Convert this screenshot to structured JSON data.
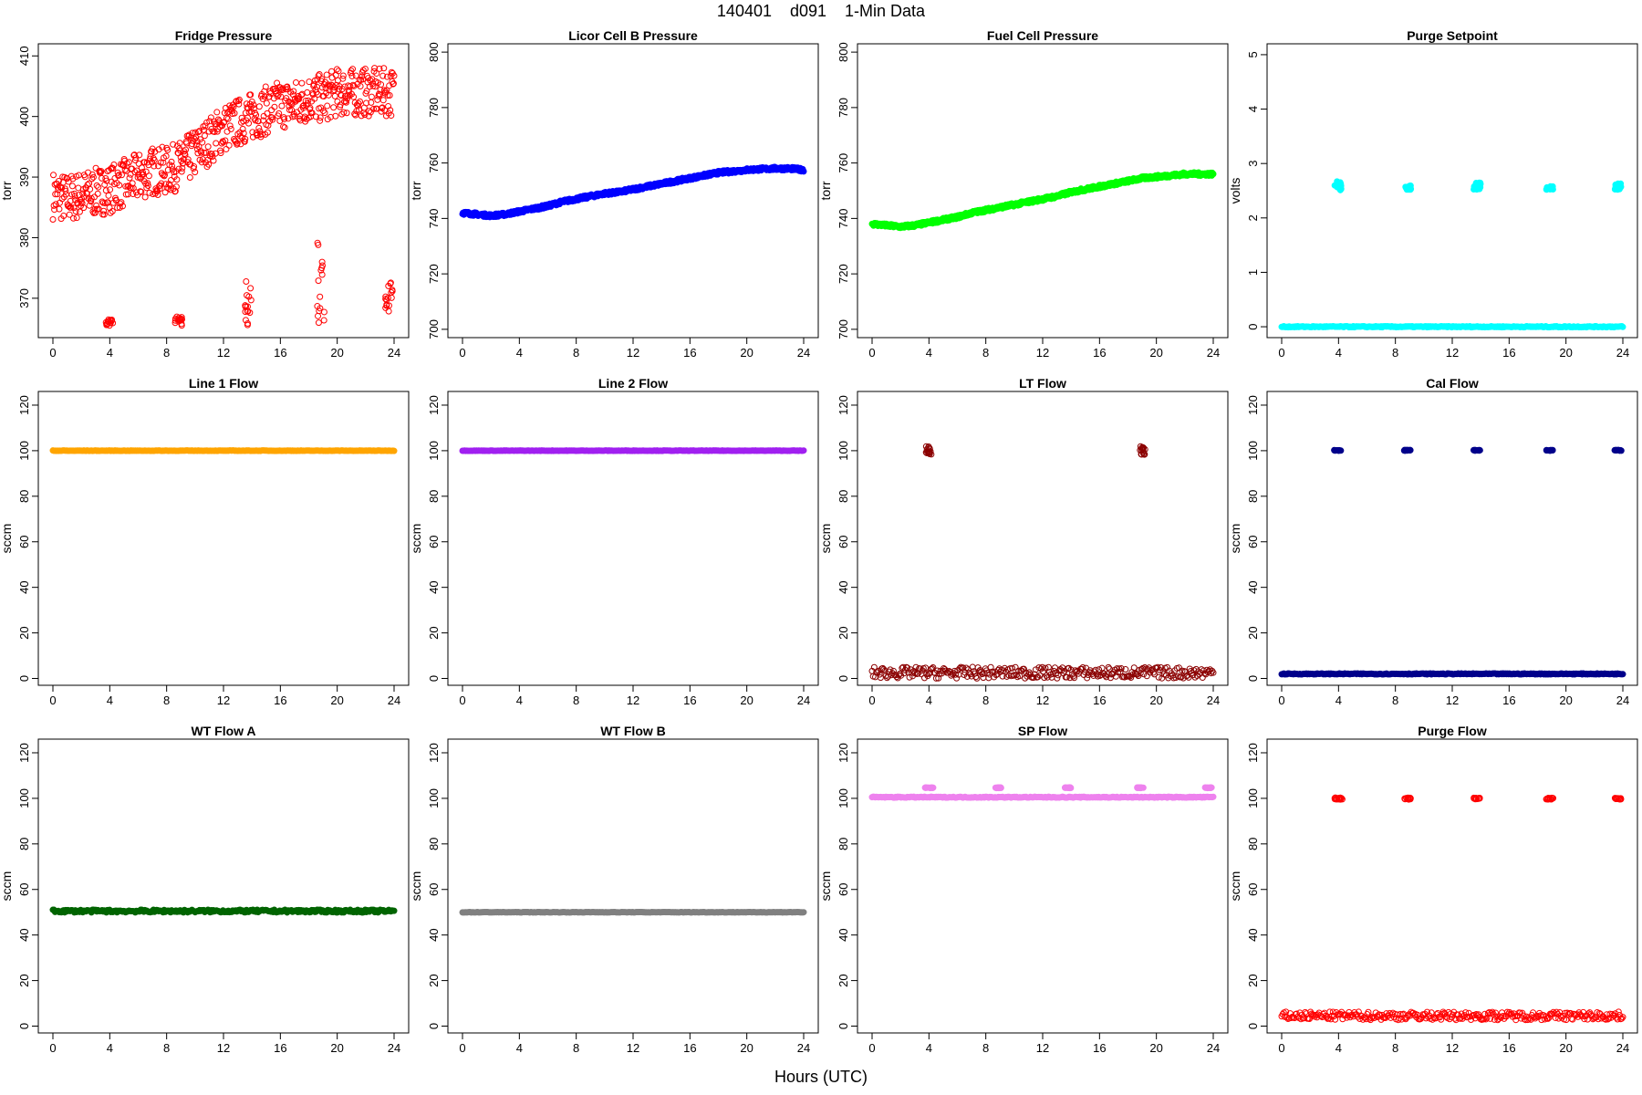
{
  "title": "140401    d091    1-Min Data",
  "x_label": "Hours (UTC)",
  "chart_data": [
    {
      "type": "scatter",
      "title": "Fridge Pressure",
      "ylabel": "torr",
      "xlim": [
        0,
        24
      ],
      "ylim": [
        363.5,
        412
      ],
      "yticks": [
        370,
        380,
        390,
        400,
        410
      ],
      "xticks": [
        0,
        4,
        8,
        12,
        16,
        20,
        24
      ],
      "color": "#ff0000",
      "marker": "open",
      "series": [
        {
          "values": [
            [
              0,
              387
            ],
            [
              1,
              386.5
            ],
            [
              2,
              387
            ],
            [
              3,
              387.5
            ],
            [
              4,
              388
            ],
            [
              5,
              389
            ],
            [
              6,
              390
            ],
            [
              7,
              391
            ],
            [
              8,
              391
            ],
            [
              9,
              392
            ],
            [
              10,
              394
            ],
            [
              11,
              396
            ],
            [
              12,
              398
            ],
            [
              13,
              399
            ],
            [
              14,
              400
            ],
            [
              15,
              401
            ],
            [
              16,
              402
            ],
            [
              17,
              402
            ],
            [
              18,
              403
            ],
            [
              19,
              403
            ],
            [
              20,
              404
            ],
            [
              21,
              404
            ],
            [
              22,
              404
            ],
            [
              23,
              404
            ],
            [
              24,
              404
            ]
          ],
          "spread": 4
        },
        {
          "segments": [
            [
              3.7,
              4.3,
              365.5,
              366.5
            ],
            [
              8.6,
              9.1,
              365.5,
              367
            ],
            [
              13.5,
              14,
              365.5,
              373
            ],
            [
              18.6,
              19.1,
              365.5,
              380
            ],
            [
              23.4,
              23.9,
              365.5,
              374
            ]
          ]
        }
      ]
    },
    {
      "type": "scatter",
      "title": "Licor Cell B Pressure",
      "ylabel": "torr",
      "xlim": [
        0,
        24
      ],
      "ylim": [
        697,
        803
      ],
      "yticks": [
        700,
        720,
        740,
        760,
        780,
        800
      ],
      "xticks": [
        0,
        4,
        8,
        12,
        16,
        20,
        24
      ],
      "color": "#0000ff",
      "marker": "filled",
      "series": [
        {
          "values": [
            [
              0,
              742
            ],
            [
              1,
              741.5
            ],
            [
              2,
              741
            ],
            [
              3,
              741.5
            ],
            [
              4,
              742.5
            ],
            [
              5,
              743.5
            ],
            [
              6,
              744.5
            ],
            [
              7,
              746
            ],
            [
              8,
              747
            ],
            [
              9,
              748
            ],
            [
              10,
              749
            ],
            [
              11,
              749.5
            ],
            [
              12,
              750.5
            ],
            [
              13,
              751.5
            ],
            [
              14,
              752.5
            ],
            [
              15,
              753.5
            ],
            [
              16,
              754.5
            ],
            [
              17,
              755.5
            ],
            [
              18,
              756.5
            ],
            [
              19,
              757
            ],
            [
              20,
              757.5
            ],
            [
              21,
              757.8
            ],
            [
              22,
              758
            ],
            [
              23,
              758
            ],
            [
              24,
              757.5
            ]
          ],
          "spread": 0.6
        }
      ]
    },
    {
      "type": "scatter",
      "title": "Fuel Cell Pressure",
      "ylabel": "torr",
      "xlim": [
        0,
        24
      ],
      "ylim": [
        697,
        803
      ],
      "yticks": [
        700,
        720,
        740,
        760,
        780,
        800
      ],
      "xticks": [
        0,
        4,
        8,
        12,
        16,
        20,
        24
      ],
      "color": "#00ff00",
      "marker": "filled",
      "series": [
        {
          "values": [
            [
              0,
              738
            ],
            [
              1,
              737.5
            ],
            [
              2,
              737
            ],
            [
              3,
              737.5
            ],
            [
              4,
              738.5
            ],
            [
              5,
              739.5
            ],
            [
              6,
              740.5
            ],
            [
              7,
              742
            ],
            [
              8,
              743
            ],
            [
              9,
              744
            ],
            [
              10,
              745
            ],
            [
              11,
              746
            ],
            [
              12,
              747
            ],
            [
              13,
              748
            ],
            [
              14,
              749.5
            ],
            [
              15,
              750.5
            ],
            [
              16,
              751.5
            ],
            [
              17,
              752.5
            ],
            [
              18,
              753.5
            ],
            [
              19,
              754.5
            ],
            [
              20,
              755
            ],
            [
              21,
              755.5
            ],
            [
              22,
              756
            ],
            [
              23,
              756
            ],
            [
              24,
              756
            ]
          ],
          "spread": 0.6
        }
      ]
    },
    {
      "type": "scatter",
      "title": "Purge Setpoint",
      "ylabel": "volts",
      "xlim": [
        0,
        24
      ],
      "ylim": [
        -0.2,
        5.2
      ],
      "yticks": [
        0,
        1,
        2,
        3,
        4,
        5
      ],
      "xticks": [
        0,
        4,
        8,
        12,
        16,
        20,
        24
      ],
      "color": "#00ffff",
      "marker": "filled",
      "series": [
        {
          "values": [
            [
              0,
              0
            ],
            [
              24,
              0
            ]
          ],
          "spread": 0.01,
          "line": true
        },
        {
          "segments": [
            [
              3.7,
              4.3,
              2.5,
              2.68
            ],
            [
              8.6,
              9.1,
              2.52,
              2.6
            ],
            [
              13.5,
              14,
              2.52,
              2.65
            ],
            [
              18.6,
              19.1,
              2.52,
              2.58
            ],
            [
              23.4,
              23.9,
              2.52,
              2.65
            ]
          ]
        }
      ]
    },
    {
      "type": "scatter",
      "title": "Line 1 Flow",
      "ylabel": "sccm",
      "xlim": [
        0,
        24
      ],
      "ylim": [
        -3,
        126
      ],
      "yticks": [
        0,
        20,
        40,
        60,
        80,
        100,
        120
      ],
      "xticks": [
        0,
        4,
        8,
        12,
        16,
        20,
        24
      ],
      "color": "#ffa500",
      "marker": "filled",
      "series": [
        {
          "values": [
            [
              0,
              100
            ],
            [
              24,
              100
            ]
          ],
          "spread": 0.1,
          "line": true
        }
      ]
    },
    {
      "type": "scatter",
      "title": "Line 2 Flow",
      "ylabel": "sccm",
      "xlim": [
        0,
        24
      ],
      "ylim": [
        -3,
        126
      ],
      "yticks": [
        0,
        20,
        40,
        60,
        80,
        100,
        120
      ],
      "xticks": [
        0,
        4,
        8,
        12,
        16,
        20,
        24
      ],
      "color": "#a020f0",
      "marker": "filled",
      "series": [
        {
          "values": [
            [
              0,
              100
            ],
            [
              24,
              100
            ]
          ],
          "spread": 0.1,
          "line": true
        }
      ]
    },
    {
      "type": "scatter",
      "title": "LT Flow",
      "ylabel": "sccm",
      "xlim": [
        0,
        24
      ],
      "ylim": [
        -3,
        126
      ],
      "yticks": [
        0,
        20,
        40,
        60,
        80,
        100,
        120
      ],
      "xticks": [
        0,
        4,
        8,
        12,
        16,
        20,
        24
      ],
      "color": "#8b0000",
      "marker": "open",
      "series": [
        {
          "values": [
            [
              0,
              2.5
            ],
            [
              24,
              2.5
            ]
          ],
          "spread": 2.5,
          "line": true
        },
        {
          "segments": [
            [
              3.8,
              4.2,
              98,
              102
            ],
            [
              18.8,
              19.2,
              98,
              102
            ]
          ]
        }
      ]
    },
    {
      "type": "scatter",
      "title": "Cal Flow",
      "ylabel": "sccm",
      "xlim": [
        0,
        24
      ],
      "ylim": [
        -3,
        126
      ],
      "yticks": [
        0,
        20,
        40,
        60,
        80,
        100,
        120
      ],
      "xticks": [
        0,
        4,
        8,
        12,
        16,
        20,
        24
      ],
      "color": "#00008b",
      "marker": "filled",
      "series": [
        {
          "values": [
            [
              0,
              2
            ],
            [
              24,
              2
            ]
          ],
          "spread": 0.2,
          "line": true
        },
        {
          "segments": [
            [
              3.7,
              4.3,
              100,
              100.3
            ],
            [
              8.6,
              9.1,
              100,
              100.3
            ],
            [
              13.5,
              14,
              100,
              100.3
            ],
            [
              18.6,
              19.1,
              100,
              100.3
            ],
            [
              23.4,
              23.9,
              100,
              100.3
            ]
          ]
        }
      ]
    },
    {
      "type": "scatter",
      "title": "WT Flow A",
      "ylabel": "sccm",
      "xlim": [
        0,
        24
      ],
      "ylim": [
        -3,
        126
      ],
      "yticks": [
        0,
        20,
        40,
        60,
        80,
        100,
        120
      ],
      "xticks": [
        0,
        4,
        8,
        12,
        16,
        20,
        24
      ],
      "color": "#006400",
      "marker": "filled",
      "series": [
        {
          "values": [
            [
              0,
              50.5
            ],
            [
              24,
              50.5
            ]
          ],
          "spread": 0.6,
          "line": true
        }
      ]
    },
    {
      "type": "scatter",
      "title": "WT Flow B",
      "ylabel": "sccm",
      "xlim": [
        0,
        24
      ],
      "ylim": [
        -3,
        126
      ],
      "yticks": [
        0,
        20,
        40,
        60,
        80,
        100,
        120
      ],
      "xticks": [
        0,
        4,
        8,
        12,
        16,
        20,
        24
      ],
      "color": "#808080",
      "marker": "filled",
      "series": [
        {
          "values": [
            [
              0,
              50
            ],
            [
              24,
              50
            ]
          ],
          "spread": 0.1,
          "line": true
        }
      ]
    },
    {
      "type": "scatter",
      "title": "SP Flow",
      "ylabel": "sccm",
      "xlim": [
        0,
        24
      ],
      "ylim": [
        -3,
        126
      ],
      "yticks": [
        0,
        20,
        40,
        60,
        80,
        100,
        120
      ],
      "xticks": [
        0,
        4,
        8,
        12,
        16,
        20,
        24
      ],
      "color": "#ee82ee",
      "marker": "filled",
      "series": [
        {
          "values": [
            [
              0,
              100.5
            ],
            [
              24,
              100.5
            ]
          ],
          "spread": 0.2,
          "line": true
        },
        {
          "segments": [
            [
              3.7,
              4.3,
              104.5,
              104.8
            ],
            [
              8.6,
              9.1,
              104.5,
              104.8
            ],
            [
              13.5,
              14,
              104.5,
              104.8
            ],
            [
              18.6,
              19.1,
              104.5,
              104.8
            ],
            [
              23.4,
              23.9,
              104.5,
              104.8
            ]
          ]
        }
      ]
    },
    {
      "type": "scatter",
      "title": "Purge Flow",
      "ylabel": "sccm",
      "xlim": [
        0,
        24
      ],
      "ylim": [
        -3,
        126
      ],
      "yticks": [
        0,
        20,
        40,
        60,
        80,
        100,
        120
      ],
      "xticks": [
        0,
        4,
        8,
        12,
        16,
        20,
        24
      ],
      "color": "#ff0000",
      "marker": "open",
      "series": [
        {
          "values": [
            [
              0,
              4.5
            ],
            [
              24,
              4.5
            ]
          ],
          "spread": 1.8,
          "line": true
        },
        {
          "segments": [
            [
              3.7,
              4.3,
              99.5,
              100.3
            ],
            [
              8.6,
              9.1,
              99.5,
              100.3
            ],
            [
              13.5,
              14,
              99.5,
              100.3
            ],
            [
              18.6,
              19.1,
              99.5,
              100.3
            ],
            [
              23.4,
              23.9,
              99.5,
              100.3
            ]
          ]
        }
      ]
    }
  ]
}
